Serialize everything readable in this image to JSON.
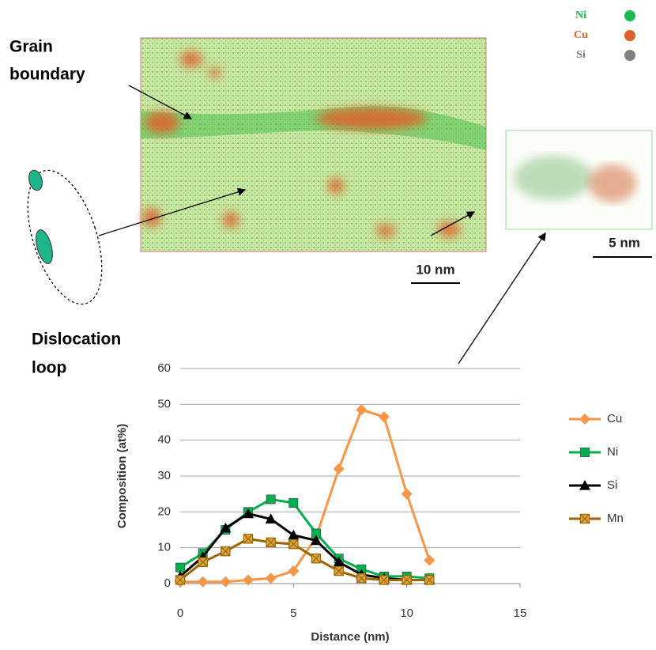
{
  "figure": {
    "grain_boundary_label": [
      "Grain",
      "boundary"
    ],
    "dislocation_loop_label": [
      "Dislocation",
      "loop"
    ],
    "scale_bar_main": "10 nm",
    "scale_bar_inset": "5 nm",
    "atom_legend": [
      {
        "name": "Ni",
        "color": "#1db954"
      },
      {
        "name": "Cu",
        "color": "#e0602a"
      },
      {
        "name": "Si",
        "color": "#808080"
      }
    ]
  },
  "chart_data": {
    "type": "line",
    "x_label": "Distance (nm)",
    "y_label": "Composition (at%)",
    "x": [
      0,
      1,
      2,
      3,
      4,
      5,
      6,
      7,
      8,
      9,
      10,
      11
    ],
    "series": [
      {
        "name": "Cu",
        "color": "#f79646",
        "marker": "diamond",
        "values": [
          0.5,
          0.5,
          0.5,
          1,
          1.5,
          3.5,
          13,
          32,
          48.5,
          46.5,
          25,
          6.5
        ]
      },
      {
        "name": "Ni",
        "color": "#00b050",
        "marker": "square",
        "values": [
          4.5,
          8.5,
          15,
          20,
          23.5,
          22.5,
          14,
          7,
          4,
          2,
          2,
          1.5
        ]
      },
      {
        "name": "Si",
        "color": "#000000",
        "marker": "triangle",
        "values": [
          2,
          7.5,
          15.5,
          19.5,
          18,
          13.5,
          12,
          6,
          2.5,
          1.5,
          1,
          1
        ]
      },
      {
        "name": "Mn",
        "color": "#9c6500",
        "marker": "xsquare",
        "values": [
          1,
          6,
          9,
          12.5,
          11.5,
          11,
          7,
          3.5,
          1.5,
          1,
          1,
          1
        ]
      }
    ],
    "xlim": [
      0,
      15
    ],
    "xticks": [
      0,
      5,
      10,
      15
    ],
    "ylim": [
      0,
      60
    ],
    "yticks": [
      0,
      10,
      20,
      30,
      40,
      50,
      60
    ],
    "grid": true,
    "legend": "right"
  }
}
